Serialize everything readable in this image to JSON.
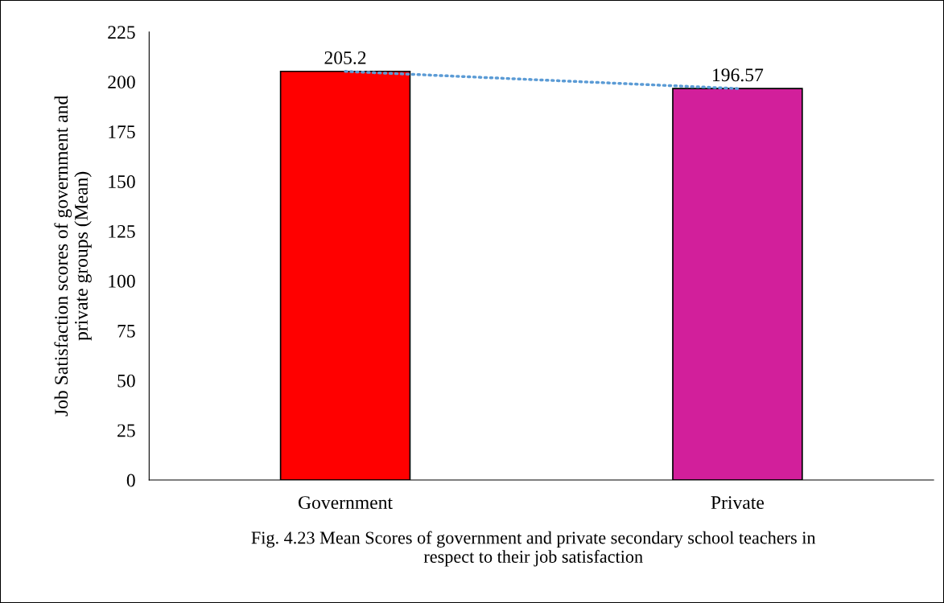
{
  "chart_data": {
    "type": "bar",
    "ylabel": "Job Satisfaction scores of government and\nprivate groups (Mean)",
    "categories": [
      "Government",
      "Private"
    ],
    "series": [
      {
        "colors": [
          "#ff0000",
          "#d21f9b"
        ],
        "values": [
          205.2,
          196.57
        ],
        "value_labels": [
          "205.2",
          "196.57"
        ]
      },
      {
        "type": "line",
        "color": "#5b9bd5",
        "line_style": "dotted",
        "values": [
          205.2,
          196.57
        ]
      }
    ],
    "ylim": [
      0,
      225
    ],
    "yticks": [
      0,
      25,
      50,
      75,
      100,
      125,
      150,
      175,
      200,
      225
    ],
    "grid": false,
    "legend": false,
    "annotations": [
      "Fig. 4.23 Mean Scores of government and private secondary school teachers in\nrespect to their job satisfaction"
    ]
  }
}
